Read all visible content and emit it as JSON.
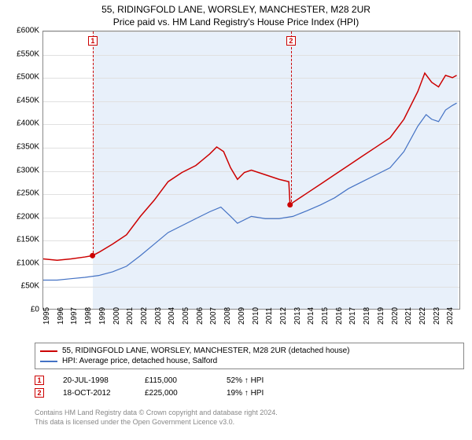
{
  "title": "55, RIDINGFOLD LANE, WORSLEY, MANCHESTER, M28 2UR",
  "subtitle": "Price paid vs. HM Land Registry's House Price Index (HPI)",
  "chart": {
    "type": "line",
    "background_color": "#ffffff",
    "shaded_bg_color": "#e8f0fa",
    "grid_color": "#e0e0e0",
    "border_color": "#888888",
    "ylim": [
      0,
      600000
    ],
    "ytick_step": 50000,
    "yticks": [
      "£0",
      "£50K",
      "£100K",
      "£150K",
      "£200K",
      "£250K",
      "£300K",
      "£350K",
      "£400K",
      "£450K",
      "£500K",
      "£550K",
      "£600K"
    ],
    "y_fontsize": 10,
    "xlim": [
      1995,
      2025
    ],
    "xticks": [
      1995,
      1996,
      1997,
      1998,
      1999,
      2000,
      2001,
      2002,
      2003,
      2004,
      2005,
      2006,
      2007,
      2008,
      2009,
      2010,
      2011,
      2012,
      2013,
      2014,
      2015,
      2016,
      2017,
      2018,
      2019,
      2020,
      2021,
      2022,
      2023,
      2024
    ],
    "x_fontsize": 10,
    "x_rotation": -90,
    "shaded_range": [
      1998.55,
      2024.8
    ],
    "series": [
      {
        "name": "price_paid",
        "label": "55, RIDINGFOLD LANE, WORSLEY, MANCHESTER, M28 2UR (detached house)",
        "color": "#cc0000",
        "line_width": 1.5,
        "data": [
          [
            1995.0,
            108000
          ],
          [
            1996.0,
            105000
          ],
          [
            1997.0,
            108000
          ],
          [
            1998.0,
            112000
          ],
          [
            1998.55,
            115000
          ],
          [
            1999.0,
            122000
          ],
          [
            2000.0,
            140000
          ],
          [
            2001.0,
            160000
          ],
          [
            2002.0,
            200000
          ],
          [
            2003.0,
            235000
          ],
          [
            2004.0,
            275000
          ],
          [
            2005.0,
            295000
          ],
          [
            2006.0,
            310000
          ],
          [
            2007.0,
            335000
          ],
          [
            2007.5,
            350000
          ],
          [
            2008.0,
            340000
          ],
          [
            2008.5,
            305000
          ],
          [
            2009.0,
            280000
          ],
          [
            2009.5,
            295000
          ],
          [
            2010.0,
            300000
          ],
          [
            2011.0,
            290000
          ],
          [
            2012.0,
            280000
          ],
          [
            2012.7,
            275000
          ],
          [
            2012.79,
            225000
          ],
          [
            2013.0,
            230000
          ],
          [
            2014.0,
            250000
          ],
          [
            2015.0,
            270000
          ],
          [
            2016.0,
            290000
          ],
          [
            2017.0,
            310000
          ],
          [
            2018.0,
            330000
          ],
          [
            2019.0,
            350000
          ],
          [
            2020.0,
            370000
          ],
          [
            2021.0,
            410000
          ],
          [
            2022.0,
            470000
          ],
          [
            2022.5,
            510000
          ],
          [
            2023.0,
            490000
          ],
          [
            2023.5,
            480000
          ],
          [
            2024.0,
            505000
          ],
          [
            2024.5,
            500000
          ],
          [
            2024.8,
            505000
          ]
        ]
      },
      {
        "name": "hpi",
        "label": "HPI: Average price, detached house, Salford",
        "color": "#4472c4",
        "line_width": 1.2,
        "data": [
          [
            1995.0,
            62000
          ],
          [
            1996.0,
            62000
          ],
          [
            1997.0,
            65000
          ],
          [
            1998.0,
            68000
          ],
          [
            1999.0,
            72000
          ],
          [
            2000.0,
            80000
          ],
          [
            2001.0,
            92000
          ],
          [
            2002.0,
            115000
          ],
          [
            2003.0,
            140000
          ],
          [
            2004.0,
            165000
          ],
          [
            2005.0,
            180000
          ],
          [
            2006.0,
            195000
          ],
          [
            2007.0,
            210000
          ],
          [
            2007.8,
            220000
          ],
          [
            2008.5,
            200000
          ],
          [
            2009.0,
            185000
          ],
          [
            2010.0,
            200000
          ],
          [
            2011.0,
            195000
          ],
          [
            2012.0,
            195000
          ],
          [
            2013.0,
            200000
          ],
          [
            2014.0,
            212000
          ],
          [
            2015.0,
            225000
          ],
          [
            2016.0,
            240000
          ],
          [
            2017.0,
            260000
          ],
          [
            2018.0,
            275000
          ],
          [
            2019.0,
            290000
          ],
          [
            2020.0,
            305000
          ],
          [
            2021.0,
            340000
          ],
          [
            2022.0,
            395000
          ],
          [
            2022.6,
            420000
          ],
          [
            2023.0,
            410000
          ],
          [
            2023.5,
            405000
          ],
          [
            2024.0,
            430000
          ],
          [
            2024.5,
            440000
          ],
          [
            2024.8,
            445000
          ]
        ]
      }
    ],
    "sale_markers": [
      {
        "num": "1",
        "x": 1998.55,
        "y": 115000,
        "color": "#cc0000"
      },
      {
        "num": "2",
        "x": 2012.79,
        "y": 225000,
        "color": "#cc0000"
      }
    ]
  },
  "legend": {
    "border_color": "#888888",
    "fontsize": 10,
    "items": [
      {
        "color": "#cc0000",
        "label": "55, RIDINGFOLD LANE, WORSLEY, MANCHESTER, M28 2UR (detached house)"
      },
      {
        "color": "#4472c4",
        "label": "HPI: Average price, detached house, Salford"
      }
    ]
  },
  "sales_table": {
    "fontsize": 10,
    "rows": [
      {
        "num": "1",
        "color": "#cc0000",
        "date": "20-JUL-1998",
        "price": "£115,000",
        "vs_hpi": "52% ↑ HPI"
      },
      {
        "num": "2",
        "color": "#cc0000",
        "date": "18-OCT-2012",
        "price": "£225,000",
        "vs_hpi": "19% ↑ HPI"
      }
    ]
  },
  "footer": {
    "color": "#888888",
    "fontsize": 9,
    "line1": "Contains HM Land Registry data © Crown copyright and database right 2024.",
    "line2": "This data is licensed under the Open Government Licence v3.0."
  }
}
